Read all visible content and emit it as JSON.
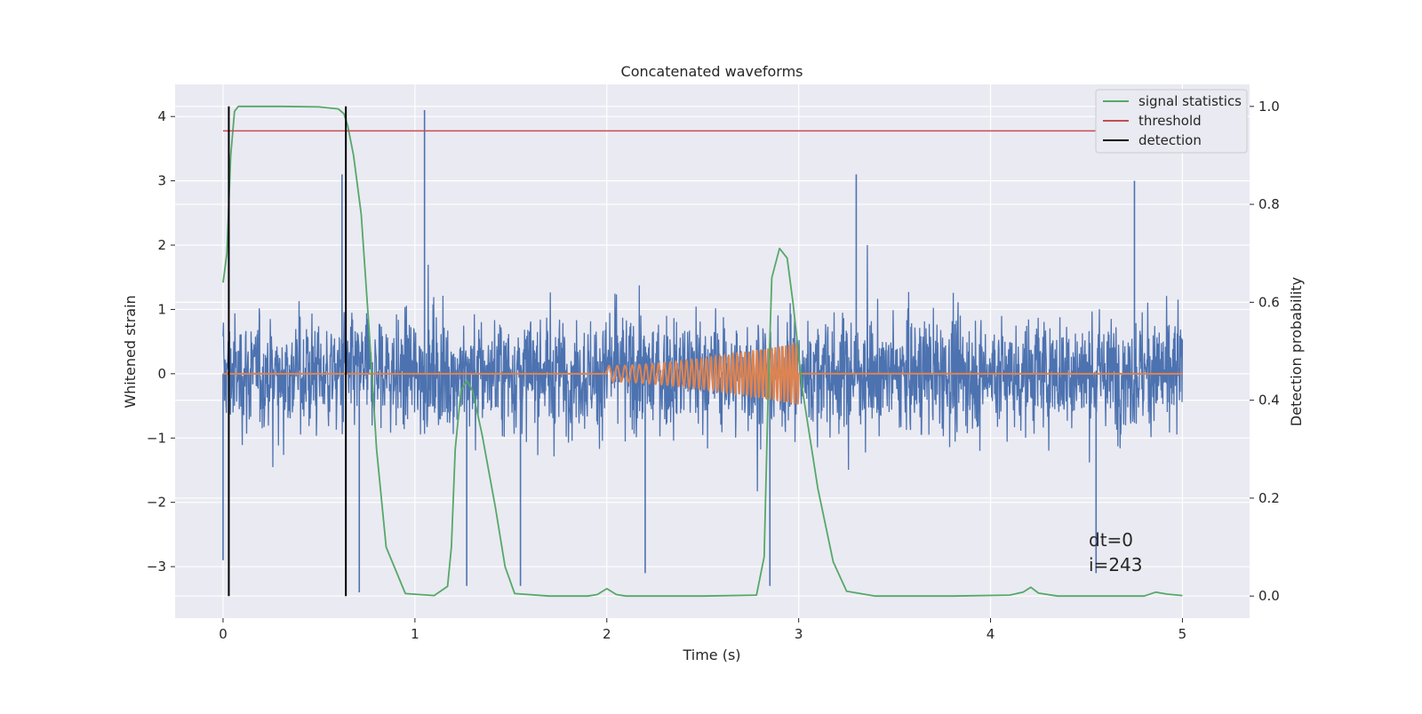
{
  "chart_data": {
    "type": "line",
    "title": "Concatenated waveforms",
    "xlabel": "Time (s)",
    "ylabel": "Whitened strain",
    "y2label": "Detection probability",
    "xlim": [
      -0.25,
      5.35
    ],
    "ylim": [
      -3.8,
      4.5
    ],
    "y2lim": [
      -0.045,
      1.045
    ],
    "x_ticks": [
      0,
      1,
      2,
      3,
      4,
      5
    ],
    "y_ticks": [
      -3,
      -2,
      -1,
      0,
      1,
      2,
      3,
      4
    ],
    "y2_ticks": [
      0.0,
      0.2,
      0.4,
      0.6,
      0.8,
      1.0
    ],
    "x_tick_labels": [
      "0",
      "1",
      "2",
      "3",
      "4",
      "5"
    ],
    "y_tick_labels": [
      "−3",
      "−2",
      "−1",
      "0",
      "1",
      "2",
      "3",
      "4"
    ],
    "y2_tick_labels": [
      "0.0",
      "0.2",
      "0.4",
      "0.6",
      "0.8",
      "1.0"
    ],
    "grid": true,
    "legend_position": "top-right",
    "colors": {
      "strain": "#4c72b0",
      "template": "#dd8452",
      "signal_statistics": "#55a868",
      "threshold": "#c44e52",
      "detection": "#000000",
      "background": "#eaeaf2",
      "grid": "#ffffff"
    },
    "series": [
      {
        "name": "",
        "axis": "left",
        "description_of_shape": "noisy strain, mostly within ±1.6 with spikes",
        "x_range": [
          0,
          5
        ],
        "typical_amplitude": 1.6,
        "notable_spikes": [
          {
            "x": 0.0,
            "y": -2.9
          },
          {
            "x": 0.62,
            "y": 3.1
          },
          {
            "x": 0.64,
            "y": -2.4
          },
          {
            "x": 0.71,
            "y": -3.4
          },
          {
            "x": 1.05,
            "y": 4.1
          },
          {
            "x": 1.27,
            "y": -3.3
          },
          {
            "x": 1.55,
            "y": -3.3
          },
          {
            "x": 2.2,
            "y": -3.1
          },
          {
            "x": 2.85,
            "y": -3.3
          },
          {
            "x": 3.3,
            "y": 3.1
          },
          {
            "x": 4.55,
            "y": -3.1
          },
          {
            "x": 4.75,
            "y": 3.0
          }
        ]
      },
      {
        "name": "",
        "axis": "left",
        "description_of_shape": "zero line with chirp between 2 and 3 s",
        "chirp_start": 2.0,
        "chirp_end": 3.0,
        "chirp_amp_start": 0.12,
        "chirp_amp_end": 0.48
      },
      {
        "name": "signal statistics",
        "axis": "right",
        "x": [
          0.0,
          0.02,
          0.04,
          0.06,
          0.08,
          0.1,
          0.15,
          0.3,
          0.5,
          0.6,
          0.63,
          0.65,
          0.68,
          0.72,
          0.76,
          0.8,
          0.85,
          0.95,
          1.1,
          1.17,
          1.19,
          1.21,
          1.24,
          1.27,
          1.3,
          1.35,
          1.42,
          1.47,
          1.52,
          1.7,
          1.9,
          1.95,
          2.0,
          2.05,
          2.1,
          2.5,
          2.78,
          2.82,
          2.84,
          2.86,
          2.9,
          2.94,
          2.97,
          3.02,
          3.1,
          3.18,
          3.25,
          3.4,
          3.8,
          4.1,
          4.17,
          4.21,
          4.25,
          4.35,
          4.8,
          4.86,
          4.92,
          5.0
        ],
        "y": [
          0.64,
          0.7,
          0.9,
          0.99,
          1.0,
          1.0,
          1.0,
          1.0,
          0.999,
          0.995,
          0.985,
          0.96,
          0.9,
          0.78,
          0.55,
          0.3,
          0.1,
          0.005,
          0.001,
          0.02,
          0.1,
          0.3,
          0.42,
          0.44,
          0.42,
          0.33,
          0.18,
          0.06,
          0.005,
          0.0,
          0.0,
          0.003,
          0.015,
          0.003,
          0.0,
          0.0,
          0.002,
          0.08,
          0.4,
          0.65,
          0.71,
          0.69,
          0.6,
          0.42,
          0.22,
          0.07,
          0.01,
          0.0,
          0.0,
          0.002,
          0.008,
          0.018,
          0.006,
          0.0,
          0.0,
          0.008,
          0.004,
          0.001
        ]
      },
      {
        "name": "threshold",
        "axis": "right",
        "x": [
          0,
          5
        ],
        "y": [
          0.95,
          0.95
        ]
      },
      {
        "name": "detection",
        "axis": "right",
        "type": "vlines",
        "x": [
          0.03,
          0.64
        ],
        "y": [
          0.0,
          1.0
        ]
      }
    ],
    "legend": [
      "signal statistics",
      "threshold",
      "detection"
    ],
    "annotations": [
      "dt=0",
      "i=243"
    ]
  }
}
